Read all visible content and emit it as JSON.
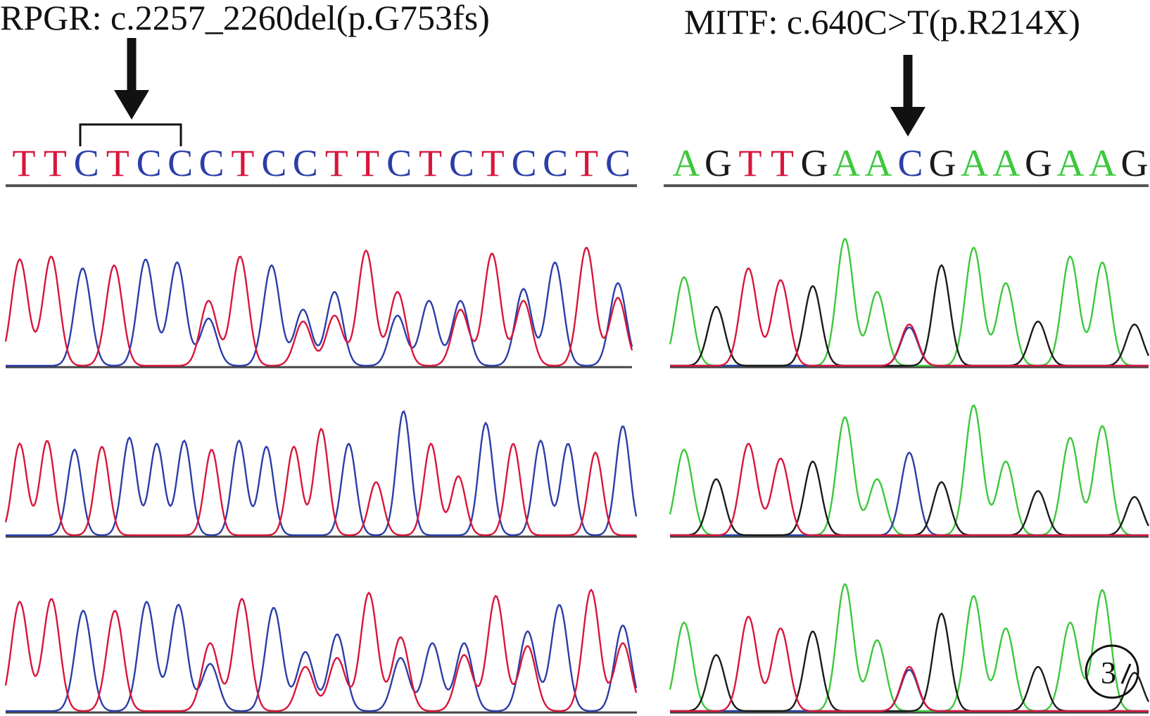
{
  "colors": {
    "A": "#3cc83c",
    "C": "#2b3ea8",
    "G": "#1a1a1a",
    "T": "#d8163c",
    "line": "#555555",
    "arrow": "#111111"
  },
  "panels": [
    {
      "id": "rpgr",
      "title": "RPGR: c.2257_2260del(p.G753fs)",
      "sequence": [
        "T",
        "T",
        "C",
        "T",
        "C",
        "C",
        "C",
        "T",
        "C",
        "C",
        "T",
        "T",
        "C",
        "T",
        "C",
        "T",
        "C",
        "C",
        "T",
        "C"
      ],
      "deleted_bases": [
        2,
        5
      ],
      "traces": [
        {
          "name": "trace-1",
          "peaks": [
            {
              "b": "T",
              "h": 0.72
            },
            {
              "b": "T",
              "h": 0.74
            },
            {
              "b": "C",
              "h": 0.66
            },
            {
              "b": "T",
              "h": 0.68
            },
            {
              "b": "C",
              "h": 0.72
            },
            {
              "b": "C",
              "h": 0.7
            },
            {
              "b": "T",
              "h": 0.44,
              "s": "C",
              "sh": 0.32
            },
            {
              "b": "T",
              "h": 0.74
            },
            {
              "b": "C",
              "h": 0.68
            },
            {
              "b": "C",
              "h": 0.38,
              "s": "T",
              "sh": 0.3
            },
            {
              "b": "C",
              "h": 0.5,
              "s": "T",
              "sh": 0.34
            },
            {
              "b": "T",
              "h": 0.78
            },
            {
              "b": "T",
              "h": 0.5,
              "s": "C",
              "sh": 0.34
            },
            {
              "b": "C",
              "h": 0.44
            },
            {
              "b": "C",
              "h": 0.44,
              "s": "T",
              "sh": 0.38
            },
            {
              "b": "T",
              "h": 0.76
            },
            {
              "b": "C",
              "h": 0.52,
              "s": "T",
              "sh": 0.44
            },
            {
              "b": "C",
              "h": 0.7
            },
            {
              "b": "T",
              "h": 0.8
            },
            {
              "b": "C",
              "h": 0.56,
              "s": "T",
              "sh": 0.46
            }
          ]
        },
        {
          "name": "trace-2",
          "peaks": [
            {
              "b": "T",
              "h": 0.62
            },
            {
              "b": "T",
              "h": 0.64
            },
            {
              "b": "C",
              "h": 0.58
            },
            {
              "b": "T",
              "h": 0.6
            },
            {
              "b": "C",
              "h": 0.66
            },
            {
              "b": "C",
              "h": 0.62
            },
            {
              "b": "C",
              "h": 0.64
            },
            {
              "b": "T",
              "h": 0.58
            },
            {
              "b": "C",
              "h": 0.64
            },
            {
              "b": "C",
              "h": 0.6
            },
            {
              "b": "T",
              "h": 0.6
            },
            {
              "b": "T",
              "h": 0.72
            },
            {
              "b": "C",
              "h": 0.62
            },
            {
              "b": "T",
              "h": 0.36
            },
            {
              "b": "C",
              "h": 0.84
            },
            {
              "b": "T",
              "h": 0.62
            },
            {
              "b": "T",
              "h": 0.4
            },
            {
              "b": "C",
              "h": 0.76
            },
            {
              "b": "T",
              "h": 0.62
            },
            {
              "b": "C",
              "h": 0.64
            },
            {
              "b": "C",
              "h": 0.62
            },
            {
              "b": "T",
              "h": 0.56
            },
            {
              "b": "C",
              "h": 0.74
            }
          ]
        },
        {
          "name": "trace-3",
          "peaks": [
            {
              "b": "T",
              "h": 0.74
            },
            {
              "b": "T",
              "h": 0.76
            },
            {
              "b": "C",
              "h": 0.68
            },
            {
              "b": "T",
              "h": 0.68
            },
            {
              "b": "C",
              "h": 0.74
            },
            {
              "b": "C",
              "h": 0.72
            },
            {
              "b": "T",
              "h": 0.46,
              "s": "C",
              "sh": 0.32
            },
            {
              "b": "T",
              "h": 0.76
            },
            {
              "b": "C",
              "h": 0.7
            },
            {
              "b": "C",
              "h": 0.4,
              "s": "T",
              "sh": 0.3
            },
            {
              "b": "C",
              "h": 0.52,
              "s": "T",
              "sh": 0.36
            },
            {
              "b": "T",
              "h": 0.8
            },
            {
              "b": "T",
              "h": 0.5,
              "s": "C",
              "sh": 0.36
            },
            {
              "b": "C",
              "h": 0.46
            },
            {
              "b": "C",
              "h": 0.46,
              "s": "T",
              "sh": 0.38
            },
            {
              "b": "T",
              "h": 0.78
            },
            {
              "b": "C",
              "h": 0.54,
              "s": "T",
              "sh": 0.44
            },
            {
              "b": "C",
              "h": 0.72
            },
            {
              "b": "T",
              "h": 0.82
            },
            {
              "b": "C",
              "h": 0.58,
              "s": "T",
              "sh": 0.46
            }
          ]
        }
      ]
    },
    {
      "id": "mitf",
      "title": "MITF: c.640C>T(p.R214X)",
      "sequence": [
        "A",
        "G",
        "T",
        "T",
        "G",
        "A",
        "A",
        "C",
        "G",
        "A",
        "A",
        "G",
        "A",
        "A",
        "G"
      ],
      "mutation_index": 7,
      "traces": [
        {
          "name": "trace-1",
          "peaks": [
            {
              "b": "A",
              "h": 0.6
            },
            {
              "b": "G",
              "h": 0.4
            },
            {
              "b": "T",
              "h": 0.66
            },
            {
              "b": "T",
              "h": 0.58
            },
            {
              "b": "G",
              "h": 0.54
            },
            {
              "b": "A",
              "h": 0.86
            },
            {
              "b": "A",
              "h": 0.5
            },
            {
              "b": "C",
              "h": 0.26,
              "s": "T",
              "sh": 0.28
            },
            {
              "b": "G",
              "h": 0.68
            },
            {
              "b": "A",
              "h": 0.8
            },
            {
              "b": "A",
              "h": 0.56
            },
            {
              "b": "G",
              "h": 0.3
            },
            {
              "b": "A",
              "h": 0.74
            },
            {
              "b": "A",
              "h": 0.7
            },
            {
              "b": "G",
              "h": 0.28
            }
          ]
        },
        {
          "name": "trace-2",
          "peaks": [
            {
              "b": "A",
              "h": 0.58
            },
            {
              "b": "G",
              "h": 0.38
            },
            {
              "b": "T",
              "h": 0.62
            },
            {
              "b": "T",
              "h": 0.52
            },
            {
              "b": "G",
              "h": 0.5
            },
            {
              "b": "A",
              "h": 0.8
            },
            {
              "b": "A",
              "h": 0.38
            },
            {
              "b": "C",
              "h": 0.56
            },
            {
              "b": "G",
              "h": 0.36
            },
            {
              "b": "A",
              "h": 0.88
            },
            {
              "b": "A",
              "h": 0.5
            },
            {
              "b": "G",
              "h": 0.3
            },
            {
              "b": "A",
              "h": 0.66
            },
            {
              "b": "A",
              "h": 0.74
            },
            {
              "b": "G",
              "h": 0.26
            }
          ]
        },
        {
          "name": "trace-3",
          "peaks": [
            {
              "b": "A",
              "h": 0.6
            },
            {
              "b": "G",
              "h": 0.38
            },
            {
              "b": "T",
              "h": 0.64
            },
            {
              "b": "T",
              "h": 0.56
            },
            {
              "b": "G",
              "h": 0.54
            },
            {
              "b": "A",
              "h": 0.86
            },
            {
              "b": "A",
              "h": 0.48
            },
            {
              "b": "C",
              "h": 0.28,
              "s": "T",
              "sh": 0.3
            },
            {
              "b": "G",
              "h": 0.66
            },
            {
              "b": "A",
              "h": 0.78
            },
            {
              "b": "A",
              "h": 0.56
            },
            {
              "b": "G",
              "h": 0.3
            },
            {
              "b": "A",
              "h": 0.6
            },
            {
              "b": "A",
              "h": 0.82
            },
            {
              "b": "G",
              "h": 0.26
            }
          ]
        }
      ]
    }
  ],
  "badge": {
    "label": "3"
  }
}
